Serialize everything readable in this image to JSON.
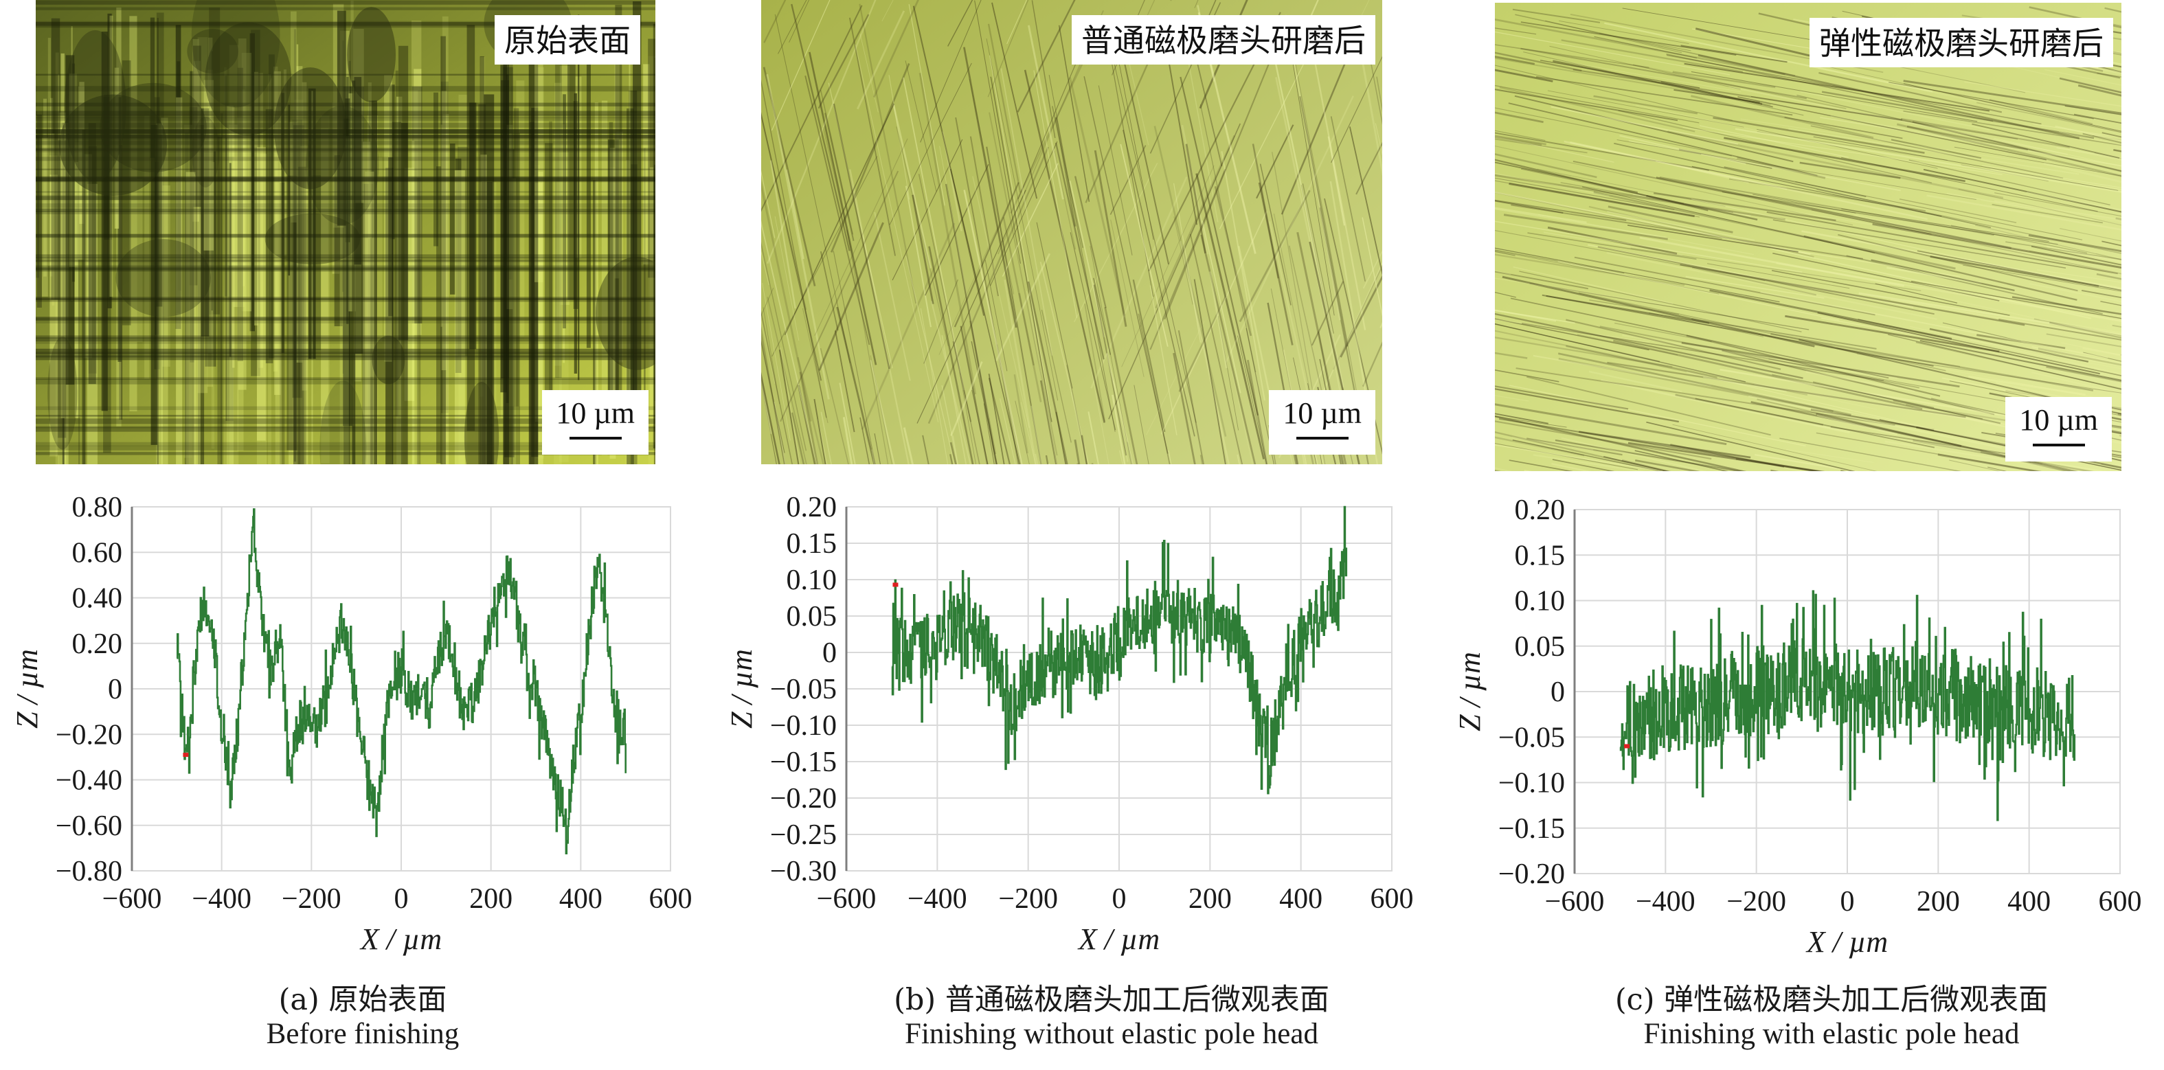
{
  "colors": {
    "trace": "#2e7d36",
    "marker": "#e02020",
    "grid": "#d9d9d9",
    "axis": "#7f7f7f"
  },
  "scale_bar_label": "10 µm",
  "panels": [
    {
      "image_label": "原始表面",
      "caption_cn": "(a) 原始表面",
      "caption_en": "Before finishing",
      "texture": "coarse"
    },
    {
      "image_label": "普通磁极磨头研磨后",
      "caption_cn": "(b) 普通磁极磨头加工后微观表面",
      "caption_en": "Finishing without elastic pole head",
      "texture": "crossed"
    },
    {
      "image_label": "弹性磁极磨头研磨后",
      "caption_cn": "(c) 弹性磁极磨头加工后微观表面",
      "caption_en": "Finishing with elastic pole head",
      "texture": "fine"
    }
  ],
  "chart_data": [
    {
      "type": "line",
      "xlabel": "X / µm",
      "ylabel": "Z / µm",
      "xlim": [
        -600,
        600
      ],
      "ylim": [
        -0.8,
        0.8
      ],
      "xticks": [
        -600,
        -400,
        -200,
        0,
        200,
        400,
        600
      ],
      "xtick_labels": [
        "−600",
        "−400",
        "−200",
        "0",
        "200",
        "400",
        "600"
      ],
      "yticks": [
        0.8,
        0.6,
        0.4,
        0.2,
        0,
        -0.2,
        -0.4,
        -0.6,
        -0.8
      ],
      "ytick_labels": [
        "0.80",
        "0.60",
        "0.40",
        "0.20",
        "0",
        "−0.20",
        "−0.40",
        "−0.60",
        "−0.80"
      ],
      "grid": true,
      "x_range": [
        -500,
        500
      ],
      "profile": [
        [
          -500,
          0.18
        ],
        [
          -480,
          -0.3
        ],
        [
          -460,
          0.1
        ],
        [
          -440,
          0.35
        ],
        [
          -420,
          0.25
        ],
        [
          -400,
          -0.2
        ],
        [
          -380,
          -0.45
        ],
        [
          -360,
          -0.1
        ],
        [
          -340,
          0.5
        ],
        [
          -330,
          0.72
        ],
        [
          -310,
          0.3
        ],
        [
          -290,
          0.1
        ],
        [
          -270,
          0.25
        ],
        [
          -250,
          -0.4
        ],
        [
          -230,
          -0.15
        ],
        [
          -210,
          -0.1
        ],
        [
          -190,
          -0.2
        ],
        [
          -170,
          -0.05
        ],
        [
          -150,
          0.2
        ],
        [
          -130,
          0.3
        ],
        [
          -110,
          0.05
        ],
        [
          -90,
          -0.25
        ],
        [
          -70,
          -0.4
        ],
        [
          -55,
          -0.65
        ],
        [
          -40,
          -0.2
        ],
        [
          -20,
          0.05
        ],
        [
          0,
          0.1
        ],
        [
          20,
          -0.05
        ],
        [
          40,
          0.0
        ],
        [
          60,
          -0.15
        ],
        [
          80,
          0.15
        ],
        [
          100,
          0.25
        ],
        [
          120,
          0.05
        ],
        [
          140,
          -0.1
        ],
        [
          160,
          -0.05
        ],
        [
          180,
          0.1
        ],
        [
          200,
          0.3
        ],
        [
          220,
          0.45
        ],
        [
          240,
          0.55
        ],
        [
          260,
          0.3
        ],
        [
          280,
          0.1
        ],
        [
          300,
          0.0
        ],
        [
          320,
          -0.2
        ],
        [
          340,
          -0.4
        ],
        [
          360,
          -0.5
        ],
        [
          370,
          -0.58
        ],
        [
          380,
          -0.35
        ],
        [
          400,
          -0.1
        ],
        [
          420,
          0.3
        ],
        [
          440,
          0.6
        ],
        [
          460,
          0.2
        ],
        [
          480,
          -0.2
        ],
        [
          500,
          -0.15
        ]
      ],
      "noise": 0.1,
      "spike_freq": 0.5,
      "marker": [
        -480,
        -0.29
      ]
    },
    {
      "type": "line",
      "xlabel": "X / µm",
      "ylabel": "Z / µm",
      "xlim": [
        -600,
        600
      ],
      "ylim": [
        -0.3,
        0.2
      ],
      "xticks": [
        -600,
        -400,
        -200,
        0,
        200,
        400,
        600
      ],
      "xtick_labels": [
        "−600",
        "−400",
        "−200",
        "0",
        "200",
        "400",
        "600"
      ],
      "yticks": [
        0.2,
        0.15,
        0.1,
        0.05,
        0,
        -0.05,
        -0.1,
        -0.15,
        -0.2,
        -0.25,
        -0.3
      ],
      "ytick_labels": [
        "0.20",
        "0.15",
        "0.10",
        "0.05",
        "0",
        "−0.05",
        "−0.10",
        "−0.15",
        "−0.20",
        "−0.25",
        "−0.30"
      ],
      "grid": true,
      "x_range": [
        -500,
        500
      ],
      "profile": [
        [
          -500,
          0.0
        ],
        [
          -450,
          0.0
        ],
        [
          -400,
          0.02
        ],
        [
          -350,
          0.04
        ],
        [
          -300,
          0.02
        ],
        [
          -270,
          -0.02
        ],
        [
          -240,
          -0.07
        ],
        [
          -200,
          -0.04
        ],
        [
          -150,
          -0.02
        ],
        [
          -100,
          0.0
        ],
        [
          -50,
          -0.02
        ],
        [
          0,
          0.02
        ],
        [
          50,
          0.05
        ],
        [
          100,
          0.06
        ],
        [
          150,
          0.05
        ],
        [
          200,
          0.04
        ],
        [
          250,
          0.03
        ],
        [
          300,
          -0.05
        ],
        [
          330,
          -0.15
        ],
        [
          350,
          -0.08
        ],
        [
          400,
          0.02
        ],
        [
          450,
          0.06
        ],
        [
          480,
          0.08
        ],
        [
          500,
          0.13
        ]
      ],
      "noise": 0.045,
      "spike_freq": 0.85,
      "marker": [
        -492,
        0.093
      ]
    },
    {
      "type": "line",
      "xlabel": "X / µm",
      "ylabel": "Z / µm",
      "xlim": [
        -600,
        600
      ],
      "ylim": [
        -0.2,
        0.2
      ],
      "xticks": [
        -600,
        -400,
        -200,
        0,
        200,
        400,
        600
      ],
      "xtick_labels": [
        "−600",
        "−400",
        "−200",
        "0",
        "200",
        "400",
        "600"
      ],
      "yticks": [
        0.2,
        0.15,
        0.1,
        0.05,
        0,
        -0.05,
        -0.1,
        -0.15,
        -0.2
      ],
      "ytick_labels": [
        "0.20",
        "0.15",
        "0.10",
        "0.05",
        "0",
        "−0.05",
        "−0.10",
        "−0.15",
        "−0.20"
      ],
      "grid": true,
      "x_range": [
        -500,
        500
      ],
      "profile": [
        [
          -500,
          -0.04
        ],
        [
          -400,
          -0.02
        ],
        [
          -300,
          -0.01
        ],
        [
          -200,
          0.0
        ],
        [
          -100,
          0.01
        ],
        [
          0,
          0.0
        ],
        [
          100,
          0.0
        ],
        [
          200,
          0.0
        ],
        [
          300,
          -0.01
        ],
        [
          400,
          -0.02
        ],
        [
          500,
          -0.03
        ]
      ],
      "noise": 0.05,
      "spike_freq": 0.95,
      "marker": [
        -485,
        -0.06
      ]
    }
  ]
}
